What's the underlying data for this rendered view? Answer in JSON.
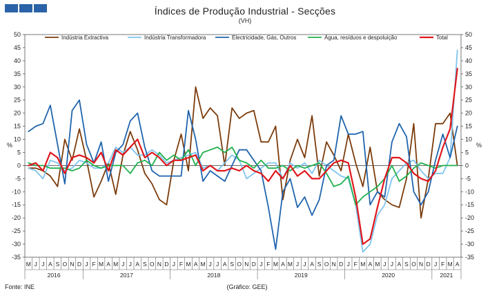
{
  "header": {
    "title": "Índices de Produção Industrial - Secções",
    "subtitle": "(VH)"
  },
  "footer": {
    "source": "Fonte: INE",
    "credit": "(Gráfico: GEE)"
  },
  "chart_data": {
    "type": "line",
    "title": "Índices de Produção Industrial - Secções",
    "subtitle": "(VH)",
    "ylabel_left": "%",
    "ylabel_right": "%",
    "ylim": [
      -35,
      50
    ],
    "yticks": [
      50,
      45,
      40,
      35,
      30,
      25,
      20,
      15,
      10,
      5,
      0,
      -5,
      -10,
      -15,
      -20,
      -25,
      -30,
      -35
    ],
    "grid": false,
    "legend_position": "top",
    "x": [
      "M",
      "J",
      "J",
      "A",
      "S",
      "O",
      "N",
      "D",
      "J",
      "F",
      "M",
      "A",
      "M",
      "J",
      "J",
      "A",
      "S",
      "O",
      "N",
      "D",
      "J",
      "F",
      "M",
      "A",
      "M",
      "J",
      "J",
      "A",
      "S",
      "O",
      "N",
      "D",
      "J",
      "F",
      "M",
      "A",
      "M",
      "J",
      "J",
      "A",
      "S",
      "O",
      "N",
      "D",
      "J",
      "F",
      "M",
      "A",
      "M",
      "J",
      "J",
      "A",
      "S",
      "O",
      "N",
      "D",
      "J",
      "F",
      "M",
      "A"
    ],
    "years": [
      {
        "label": "2016",
        "start": 0,
        "end": 7
      },
      {
        "label": "2017",
        "start": 8,
        "end": 19
      },
      {
        "label": "2018",
        "start": 20,
        "end": 31
      },
      {
        "label": "2019",
        "start": 32,
        "end": 43
      },
      {
        "label": "2020",
        "start": 44,
        "end": 55
      },
      {
        "label": "2021",
        "start": 56,
        "end": 59
      }
    ],
    "series": [
      {
        "name": "Indústria Extractiva",
        "color": "#7b3b0b",
        "values": [
          -1,
          -1,
          -2,
          -4,
          -8,
          10,
          2,
          14,
          2,
          -12,
          -6,
          1,
          -11,
          4,
          13,
          6,
          -3,
          -7,
          -13,
          -15,
          2,
          12,
          -2,
          30,
          18,
          22,
          19,
          0,
          22,
          18,
          20,
          21,
          9,
          9,
          15,
          -13,
          2,
          10,
          3,
          19,
          -4,
          9,
          4,
          -2,
          12,
          1,
          -8,
          7,
          -10,
          -13,
          -15,
          -16,
          -5,
          16,
          -20,
          -5,
          16,
          16,
          20,
          0
        ]
      },
      {
        "name": "Indústria Transformadora",
        "color": "#7ec4ee",
        "values": [
          -1,
          -2,
          -5,
          2,
          1,
          -2,
          -1,
          2,
          1,
          -1,
          -1,
          1,
          7,
          5,
          7,
          4,
          4,
          6,
          4,
          1,
          2,
          3,
          4,
          5,
          -1,
          0,
          -2,
          1,
          4,
          2,
          -5,
          -3,
          -1,
          1,
          1,
          -5,
          1,
          -1,
          1,
          -3,
          2,
          0,
          -2,
          -4,
          -5,
          -15,
          -33,
          -30,
          -19,
          -15,
          -5,
          -2,
          1,
          2,
          -2,
          -5,
          -3,
          -3,
          3,
          44
        ]
      },
      {
        "name": "Electricidade, Gás, Outros",
        "color": "#1f64ad",
        "values": [
          13,
          15,
          16,
          23,
          8,
          -7,
          21,
          25,
          8,
          1,
          9,
          -6,
          5,
          8,
          17,
          20,
          7,
          -2,
          -4,
          -4,
          -4,
          -4,
          21,
          10,
          -6,
          -2,
          -4,
          -6,
          0,
          6,
          6,
          2,
          -2,
          -16,
          -32,
          -10,
          -5,
          -16,
          -12,
          -19,
          -13,
          0,
          2,
          19,
          12,
          12,
          13,
          -15,
          -10,
          -12,
          9,
          16,
          11,
          -10,
          -15,
          -10,
          2,
          12,
          3,
          15
        ]
      },
      {
        "name": "Água, resíduos e despoluição",
        "color": "#20b04e",
        "values": [
          1,
          0,
          0,
          -1,
          -1,
          -1,
          -2,
          -1,
          2,
          0,
          -1,
          0,
          0,
          0,
          -3,
          1,
          2,
          0,
          5,
          2,
          4,
          2,
          6,
          0,
          5,
          6,
          7,
          5,
          7,
          2,
          1,
          -1,
          2,
          -1,
          -1,
          0,
          -2,
          0,
          -1,
          0,
          1,
          -3,
          -8,
          -7,
          -4,
          -15,
          -12,
          -10,
          -8,
          -5,
          0,
          -6,
          -4,
          -1,
          1,
          0,
          -1,
          0,
          0,
          0
        ]
      },
      {
        "name": "Total",
        "color": "#e0161b",
        "values": [
          0,
          1,
          -2,
          5,
          3,
          -3,
          3,
          4,
          3,
          1,
          5,
          -2,
          6,
          4,
          7,
          10,
          3,
          5,
          3,
          0,
          2,
          2,
          3,
          4,
          -2,
          0,
          -2,
          -2,
          -1,
          -2,
          0,
          -2,
          -3,
          -6,
          -2,
          -5,
          0,
          -4,
          -2,
          -5,
          -5,
          -2,
          1,
          2,
          1,
          -12,
          -30,
          -28,
          -16,
          -5,
          3,
          3,
          1,
          -3,
          -5,
          -6,
          -2,
          7,
          14,
          37
        ]
      }
    ]
  }
}
